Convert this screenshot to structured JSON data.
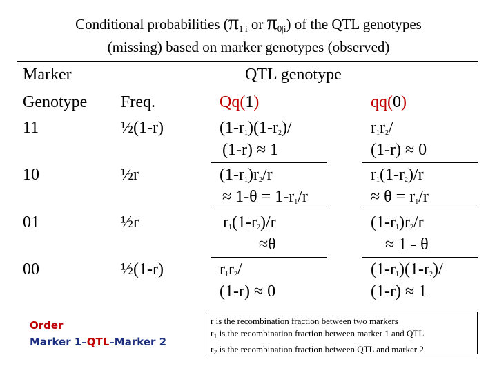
{
  "title": {
    "line1_prefix": "Conditional probabilities (",
    "pi1": "π",
    "pi1_sub": "1|i",
    "or_word": " or ",
    "pi2": "π",
    "pi2_sub": "0|i",
    "line1_suffix": ") of the QTL genotypes",
    "line2": "(missing) based on marker genotypes (observed)"
  },
  "table": {
    "head_marker_line1": "Marker",
    "head_marker_line2": "Genotype",
    "head_freq": "Freq.",
    "head_qtl": "QTL genotype",
    "head_qq1_text": "Qq(",
    "head_qq1_num": "1",
    "head_qq1_close": ")",
    "head_qq0_text": "qq(",
    "head_qq0_num": "0",
    "head_qq0_close": ")",
    "rows": [
      {
        "genotype": "11",
        "freq": "½(1-r)"
      },
      {
        "genotype": "10",
        "freq": "½r"
      },
      {
        "genotype": "01",
        "freq": "½r"
      },
      {
        "genotype": "00",
        "freq": "½(1-r)"
      }
    ]
  },
  "order": {
    "label": "Order",
    "marker1": "Marker 1–",
    "qtl": "QTL",
    "marker2": "–Marker 2"
  },
  "notes": {
    "line1": "r is the recombination fraction between two markers",
    "line2_pre": "r",
    "line2_sub": "1",
    "line2_post": " is the recombination fraction between marker 1 and QTL",
    "line3_pre": "r",
    "line3_sub": "2",
    "line3_post": " is the recombination fraction between QTL and marker 2"
  },
  "colors": {
    "accent_red": "#c00000",
    "order_blue": "#1f2f7f",
    "note_border": "#000000"
  }
}
